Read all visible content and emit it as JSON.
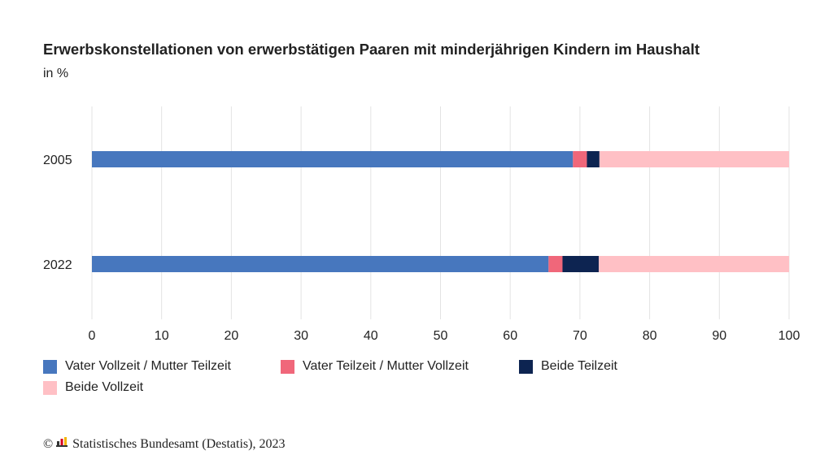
{
  "chart_data": {
    "type": "bar",
    "orientation": "horizontal",
    "stacked": true,
    "title": "Erwerbskonstellationen von erwerbstätigen Paaren mit minderjährigen Kindern im Haushalt",
    "subtitle": "in %",
    "categories": [
      "2005",
      "2022"
    ],
    "series": [
      {
        "name": "Vater Vollzeit / Mutter Teilzeit",
        "color": "#4777be",
        "values": [
          69.0,
          65.5
        ]
      },
      {
        "name": "Vater Teilzeit / Mutter Vollzeit",
        "color": "#f0677a",
        "values": [
          2.0,
          2.0
        ]
      },
      {
        "name": "Beide Teilzeit",
        "color": "#0d2451",
        "values": [
          1.8,
          5.2
        ]
      },
      {
        "name": "Beide Vollzeit",
        "color": "#ffc0c5",
        "values": [
          27.2,
          27.3
        ]
      }
    ],
    "xlim": [
      0,
      100
    ],
    "xticks": [
      0,
      10,
      20,
      30,
      40,
      50,
      60,
      70,
      80,
      90,
      100
    ],
    "grid": true,
    "legend_position": "bottom-left"
  },
  "footer": {
    "copyright_symbol": "©",
    "source": "Statistisches Bundesamt (Destatis), 2023"
  }
}
